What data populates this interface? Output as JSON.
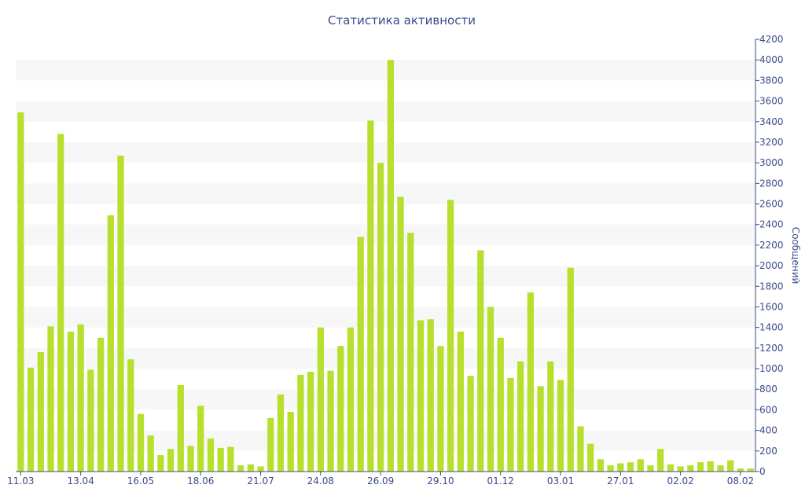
{
  "chart_data": {
    "type": "bar",
    "title": "Статистика активности",
    "ylabel": "Сообщений",
    "xlabel": "",
    "ylim": [
      0,
      4200
    ],
    "y_ticks": [
      0,
      200,
      400,
      600,
      800,
      1000,
      1200,
      1400,
      1600,
      1800,
      2000,
      2200,
      2400,
      2600,
      2800,
      3000,
      3200,
      3400,
      3600,
      3800,
      4000,
      4200
    ],
    "x_tick_labels": [
      {
        "index": 0,
        "label": "11.03"
      },
      {
        "index": 6,
        "label": "13.04"
      },
      {
        "index": 12,
        "label": "16.05"
      },
      {
        "index": 18,
        "label": "18.06"
      },
      {
        "index": 24,
        "label": "21.07"
      },
      {
        "index": 30,
        "label": "24.08"
      },
      {
        "index": 36,
        "label": "26.09"
      },
      {
        "index": 42,
        "label": "29.10"
      },
      {
        "index": 48,
        "label": "01.12"
      },
      {
        "index": 54,
        "label": "03.01"
      },
      {
        "index": 60,
        "label": "27.01"
      },
      {
        "index": 66,
        "label": "02.02"
      },
      {
        "index": 72,
        "label": "08.02"
      }
    ],
    "values": [
      3490,
      1010,
      1160,
      1410,
      3280,
      1360,
      1430,
      990,
      1300,
      2490,
      3070,
      1090,
      560,
      350,
      160,
      220,
      840,
      250,
      640,
      320,
      230,
      240,
      60,
      70,
      50,
      520,
      750,
      580,
      940,
      970,
      1400,
      980,
      1220,
      1400,
      2280,
      3410,
      3000,
      4000,
      2670,
      2320,
      1470,
      1480,
      1220,
      2640,
      1360,
      930,
      2150,
      1600,
      1300,
      910,
      1070,
      1740,
      830,
      1070,
      890,
      1980,
      440,
      270,
      120,
      60,
      80,
      90,
      120,
      60,
      220,
      70,
      50,
      60,
      90,
      100,
      60,
      110,
      30,
      30
    ],
    "bar_color": "#b7e02e",
    "grid": "alternating horizontal bands",
    "y_axis_position": "right",
    "legend": "none"
  }
}
